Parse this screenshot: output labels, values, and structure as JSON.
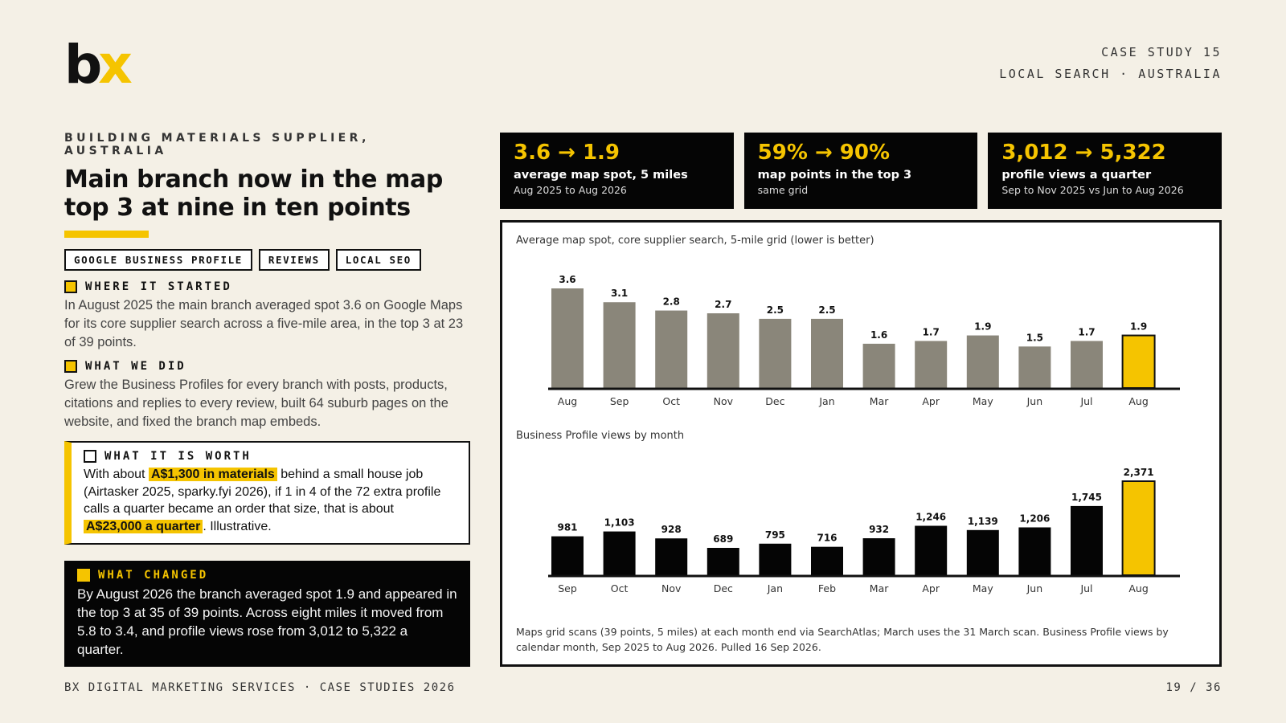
{
  "logo": {
    "b": "b",
    "x": "x"
  },
  "header": {
    "case_label": "CASE STUDY 15",
    "region_label": "LOCAL SEARCH · AUSTRALIA"
  },
  "client": {
    "eyebrow": "BUILDING MATERIALS SUPPLIER, AUSTRALIA",
    "headline": "Main branch now in the map top 3 at nine in ten points",
    "tags": [
      "GOOGLE BUSINESS PROFILE",
      "REVIEWS",
      "LOCAL SEO"
    ]
  },
  "sections": {
    "started_title": "WHERE IT STARTED",
    "started_text": "In August 2025 the main branch averaged spot 3.6 on Google Maps for its core supplier search across a five-mile area, in the top 3 at 23 of 39 points.",
    "did_title": "WHAT WE DID",
    "did_text": "Grew the Business Profiles for every branch with posts, products, citations and replies to every review, built 64 suburb pages on the website, and fixed the branch map embeds.",
    "worth_title": "WHAT IT IS WORTH",
    "worth_t1": "With about ",
    "worth_h1": "A$1,300 in materials",
    "worth_t2": " behind a small house job (Airtasker 2025, sparky.fyi 2026), if 1 in 4 of the 72 extra profile calls a quarter became an order that size, that is about ",
    "worth_h2": "A$23,000 a quarter",
    "worth_t3": ". Illustrative.",
    "changed_title": "WHAT CHANGED",
    "changed_text": "By August 2026 the branch averaged spot 1.9 and appeared in the top 3 at 35 of 39 points. Across eight miles it moved from 5.8 to 3.4, and profile views rose from 3,012 to 5,322 a quarter."
  },
  "kpis": [
    {
      "value": "3.6 → 1.9",
      "label": "average map spot, 5 miles",
      "sub": "Aug 2025 to Aug 2026"
    },
    {
      "value": "59% → 90%",
      "label": "map points in the top 3",
      "sub": "same grid"
    },
    {
      "value": "3,012 → 5,322",
      "label": "profile views a quarter",
      "sub": "Sep to Nov 2025 vs Jun to Aug 2026"
    }
  ],
  "chart_data": [
    {
      "type": "bar",
      "title": "Average map spot, core supplier search, 5-mile grid (lower is better)",
      "categories": [
        "Aug",
        "Sep",
        "Oct",
        "Nov",
        "Dec",
        "Jan",
        "Mar",
        "Apr",
        "May",
        "Jun",
        "Jul",
        "Aug"
      ],
      "values": [
        3.6,
        3.1,
        2.8,
        2.7,
        2.5,
        2.5,
        1.6,
        1.7,
        1.9,
        1.5,
        1.7,
        1.9
      ],
      "labels": [
        "3.6",
        "3.1",
        "2.8",
        "2.7",
        "2.5",
        "2.5",
        "1.6",
        "1.7",
        "1.9",
        "1.5",
        "1.7",
        "1.9"
      ],
      "highlight_index": 11,
      "ylim": [
        0,
        3.6
      ],
      "colors": {
        "bar": "#8a867a",
        "highlight": "#f5c400"
      }
    },
    {
      "type": "bar",
      "title": "Business Profile views by month",
      "categories": [
        "Sep",
        "Oct",
        "Nov",
        "Dec",
        "Jan",
        "Feb",
        "Mar",
        "Apr",
        "May",
        "Jun",
        "Jul",
        "Aug"
      ],
      "values": [
        981,
        1103,
        928,
        689,
        795,
        716,
        932,
        1246,
        1139,
        1206,
        1745,
        2371
      ],
      "labels": [
        "981",
        "1,103",
        "928",
        "689",
        "795",
        "716",
        "932",
        "1,246",
        "1,139",
        "1,206",
        "1,745",
        "2,371"
      ],
      "highlight_index": 11,
      "ylim": [
        0,
        2371
      ],
      "colors": {
        "bar": "#050505",
        "highlight": "#f5c400"
      }
    }
  ],
  "source_note": "Maps grid scans (39 points, 5 miles) at each month end via SearchAtlas; March uses the 31 March scan. Business Profile views by calendar month, Sep 2025 to Aug 2026. Pulled 16 Sep 2026.",
  "footer": {
    "left": "BX DIGITAL MARKETING SERVICES · CASE STUDIES 2026",
    "right": "19 / 36"
  }
}
